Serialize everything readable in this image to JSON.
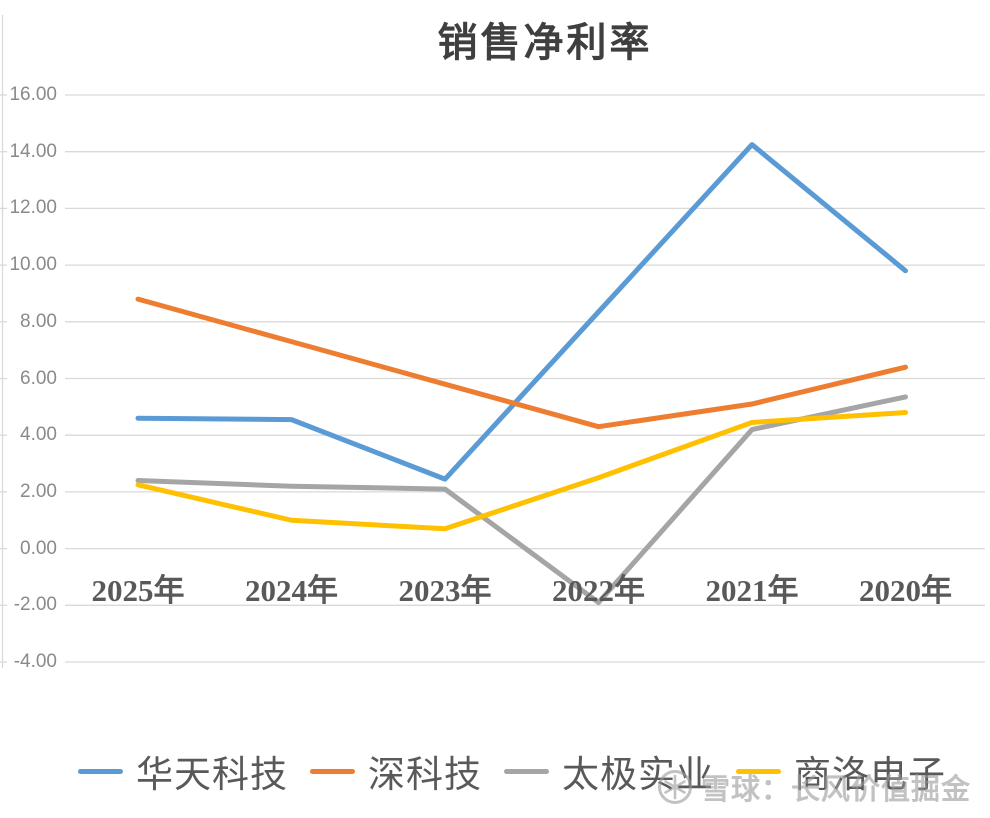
{
  "title": "销售净利率",
  "watermark": {
    "icon": "snowball-icon",
    "text": "雪球：长风价值掘金"
  },
  "chart_data": {
    "type": "line",
    "title": "销售净利率",
    "categories": [
      "2025年",
      "2024年",
      "2023年",
      "2022年",
      "2021年",
      "2020年"
    ],
    "series": [
      {
        "name": "华天科技",
        "color": "#5B9BD5",
        "values": [
          4.6,
          4.55,
          2.45,
          8.35,
          14.25,
          9.8
        ]
      },
      {
        "name": "深科技",
        "color": "#ED7D31",
        "values": [
          8.8,
          7.3,
          5.8,
          4.3,
          5.1,
          6.4
        ]
      },
      {
        "name": "太极实业",
        "color": "#A5A5A5",
        "values": [
          2.4,
          2.2,
          2.1,
          -1.9,
          4.2,
          5.35
        ]
      },
      {
        "name": "商洛电子",
        "color": "#FFC000",
        "values": [
          2.25,
          1.0,
          0.7,
          2.5,
          4.45,
          4.8
        ]
      }
    ],
    "xlabel": "",
    "ylabel": "",
    "ylim": [
      -4,
      16
    ],
    "y_ticks": [
      16,
      14,
      12,
      10,
      8,
      6,
      4,
      2,
      0,
      -2,
      -4
    ],
    "y_tick_labels": [
      "16.00",
      "14.00",
      "12.00",
      "10.00",
      "8.00",
      "6.00",
      "4.00",
      "2.00",
      "0.00",
      "-2.00",
      "-4.00"
    ],
    "grid": true,
    "legend_position": "bottom",
    "colors": {
      "gridline": "#D9D9D9",
      "axis_line": "#D9D9D9",
      "y_tick_label": "#8a8a8a",
      "category_label": "#595959",
      "legend_label": "#595959",
      "title": "#3f3f3f",
      "background": "#ffffff"
    }
  }
}
